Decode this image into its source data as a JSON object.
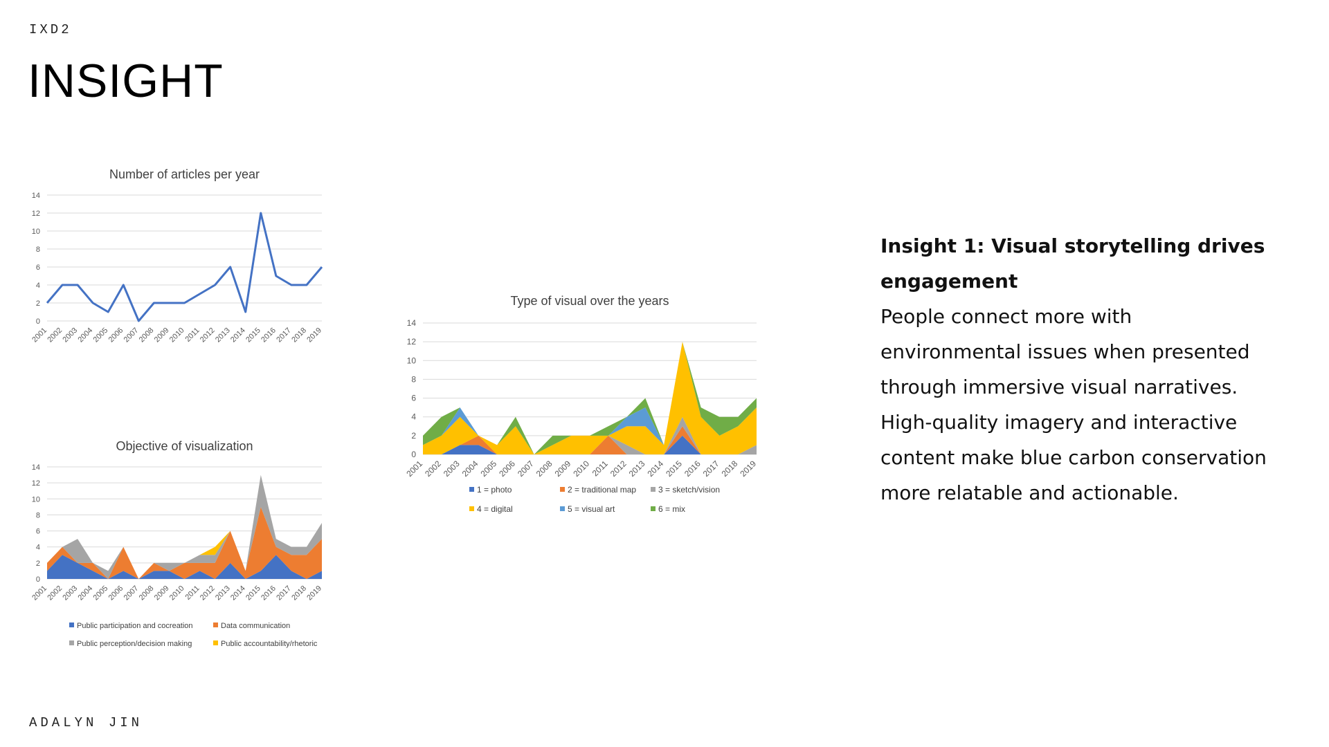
{
  "header": {
    "course": "IXD2",
    "title": "INSIGHT"
  },
  "footer": {
    "author": "ADALYN JIN"
  },
  "insight": {
    "heading": "Insight 1: Visual storytelling drives engagement",
    "body": "People connect more with environmental issues when presented through immersive visual narratives. High-quality imagery and interactive content make blue carbon conservation more relatable and actionable."
  },
  "chart_data": [
    {
      "id": "articles",
      "type": "line",
      "title": "Number of articles per year",
      "categories": [
        "2001",
        "2002",
        "2003",
        "2004",
        "2005",
        "2006",
        "2007",
        "2008",
        "2009",
        "2010",
        "2011",
        "2012",
        "2013",
        "2014",
        "2015",
        "2016",
        "2017",
        "2018",
        "2019"
      ],
      "series": [
        {
          "values": [
            2,
            4,
            4,
            2,
            1,
            4,
            0,
            2,
            2,
            2,
            3,
            4,
            6,
            1,
            12,
            5,
            4,
            4,
            6
          ],
          "color": "#4472c4"
        }
      ],
      "ylim": [
        0,
        14
      ],
      "yticks": [
        0,
        2,
        4,
        6,
        8,
        10,
        12,
        14
      ],
      "grid": true
    },
    {
      "id": "visual-type",
      "type": "area",
      "title": "Type of visual over the years",
      "categories": [
        "2001",
        "2002",
        "2003",
        "2004",
        "2005",
        "2006",
        "2007",
        "2008",
        "2009",
        "2010",
        "2011",
        "2012",
        "2013",
        "2014",
        "2015",
        "2016",
        "2017",
        "2018",
        "2019"
      ],
      "series": [
        {
          "name": "1 = photo",
          "color": "#4472c4",
          "values": [
            0,
            0,
            1,
            1,
            0,
            0,
            0,
            0,
            0,
            0,
            0,
            0,
            0,
            0,
            2,
            0,
            0,
            0,
            0
          ]
        },
        {
          "name": "2 = traditional map",
          "color": "#ed7d31",
          "values": [
            0,
            0,
            0,
            1,
            0,
            0,
            0,
            0,
            0,
            0,
            2,
            0,
            0,
            0,
            1,
            0,
            0,
            0,
            0
          ]
        },
        {
          "name": "3 = sketch/vision",
          "color": "#a5a5a5",
          "values": [
            0,
            0,
            0,
            0,
            0,
            0,
            0,
            0,
            0,
            0,
            0,
            1,
            0,
            0,
            1,
            0,
            0,
            0,
            1
          ]
        },
        {
          "name": "4 = digital",
          "color": "#ffc000",
          "values": [
            1,
            2,
            3,
            0,
            1,
            3,
            0,
            1,
            2,
            2,
            0,
            2,
            3,
            1,
            8,
            4,
            2,
            3,
            4
          ]
        },
        {
          "name": "5 = visual art",
          "color": "#5b9bd5",
          "values": [
            0,
            0,
            1,
            0,
            0,
            0,
            0,
            0,
            0,
            0,
            0,
            1,
            2,
            0,
            0,
            0,
            0,
            0,
            0
          ]
        },
        {
          "name": "6 = mix",
          "color": "#70ad47",
          "values": [
            1,
            2,
            0,
            0,
            0,
            1,
            0,
            1,
            0,
            0,
            1,
            0,
            1,
            0,
            0,
            1,
            2,
            1,
            1
          ]
        }
      ],
      "ylim": [
        0,
        14
      ],
      "yticks": [
        0,
        2,
        4,
        6,
        8,
        10,
        12,
        14
      ],
      "grid": true
    },
    {
      "id": "objective",
      "type": "area",
      "title": "Objective of visualization",
      "categories": [
        "2001",
        "2002",
        "2003",
        "2004",
        "2005",
        "2006",
        "2007",
        "2008",
        "2009",
        "2010",
        "2011",
        "2012",
        "2013",
        "2014",
        "2015",
        "2016",
        "2017",
        "2018",
        "2019"
      ],
      "series": [
        {
          "name": "Public participation and cocreation",
          "color": "#4472c4",
          "values": [
            1,
            3,
            2,
            1,
            0,
            1,
            0,
            1,
            1,
            0,
            1,
            0,
            2,
            0,
            1,
            3,
            1,
            0,
            1
          ]
        },
        {
          "name": "Data communication",
          "color": "#ed7d31",
          "values": [
            1,
            1,
            0,
            1,
            0,
            3,
            0,
            1,
            0,
            2,
            1,
            2,
            4,
            1,
            8,
            1,
            2,
            3,
            4
          ]
        },
        {
          "name": "Public perception/decision making",
          "color": "#a5a5a5",
          "values": [
            0,
            0,
            3,
            0,
            1,
            0,
            0,
            0,
            1,
            0,
            1,
            1,
            0,
            0,
            4,
            1,
            1,
            1,
            2
          ]
        },
        {
          "name": "Public accountability/rhetoric",
          "color": "#ffc000",
          "values": [
            0,
            0,
            0,
            0,
            0,
            0,
            0,
            0,
            0,
            0,
            0,
            1,
            0,
            0,
            0,
            0,
            0,
            0,
            0
          ]
        }
      ],
      "ylim": [
        0,
        14
      ],
      "yticks": [
        0,
        2,
        4,
        6,
        8,
        10,
        12,
        14
      ],
      "grid": true
    }
  ]
}
